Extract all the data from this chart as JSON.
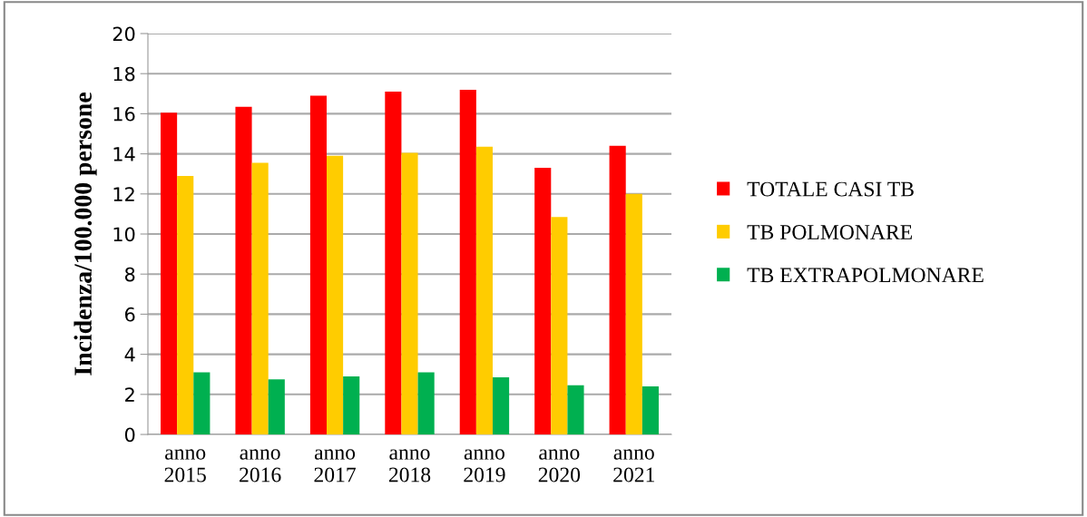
{
  "chart_data": {
    "type": "bar",
    "ylabel": "Incidenza/100.000 persone",
    "categories": [
      "anno\n2015",
      "anno\n2016",
      "anno\n2017",
      "anno\n2018",
      "anno\n2019",
      "anno\n2020",
      "anno\n2021"
    ],
    "series": [
      {
        "name": "TOTALE CASI TB",
        "color": "#ff0000",
        "values": [
          16.05,
          16.35,
          16.9,
          17.1,
          17.2,
          13.3,
          14.4
        ]
      },
      {
        "name": "TB POLMONARE",
        "color": "#ffcc00",
        "values": [
          12.9,
          13.55,
          13.9,
          14.05,
          14.35,
          10.85,
          12.0
        ]
      },
      {
        "name": "TB EXTRAPOLMONARE",
        "color": "#00b050",
        "values": [
          3.1,
          2.75,
          2.9,
          3.1,
          2.85,
          2.45,
          2.4
        ]
      }
    ],
    "ylim": [
      0,
      20
    ],
    "yticks": [
      0,
      2,
      4,
      6,
      8,
      10,
      12,
      14,
      16,
      18,
      20
    ],
    "grid": "y",
    "legend": "right"
  }
}
